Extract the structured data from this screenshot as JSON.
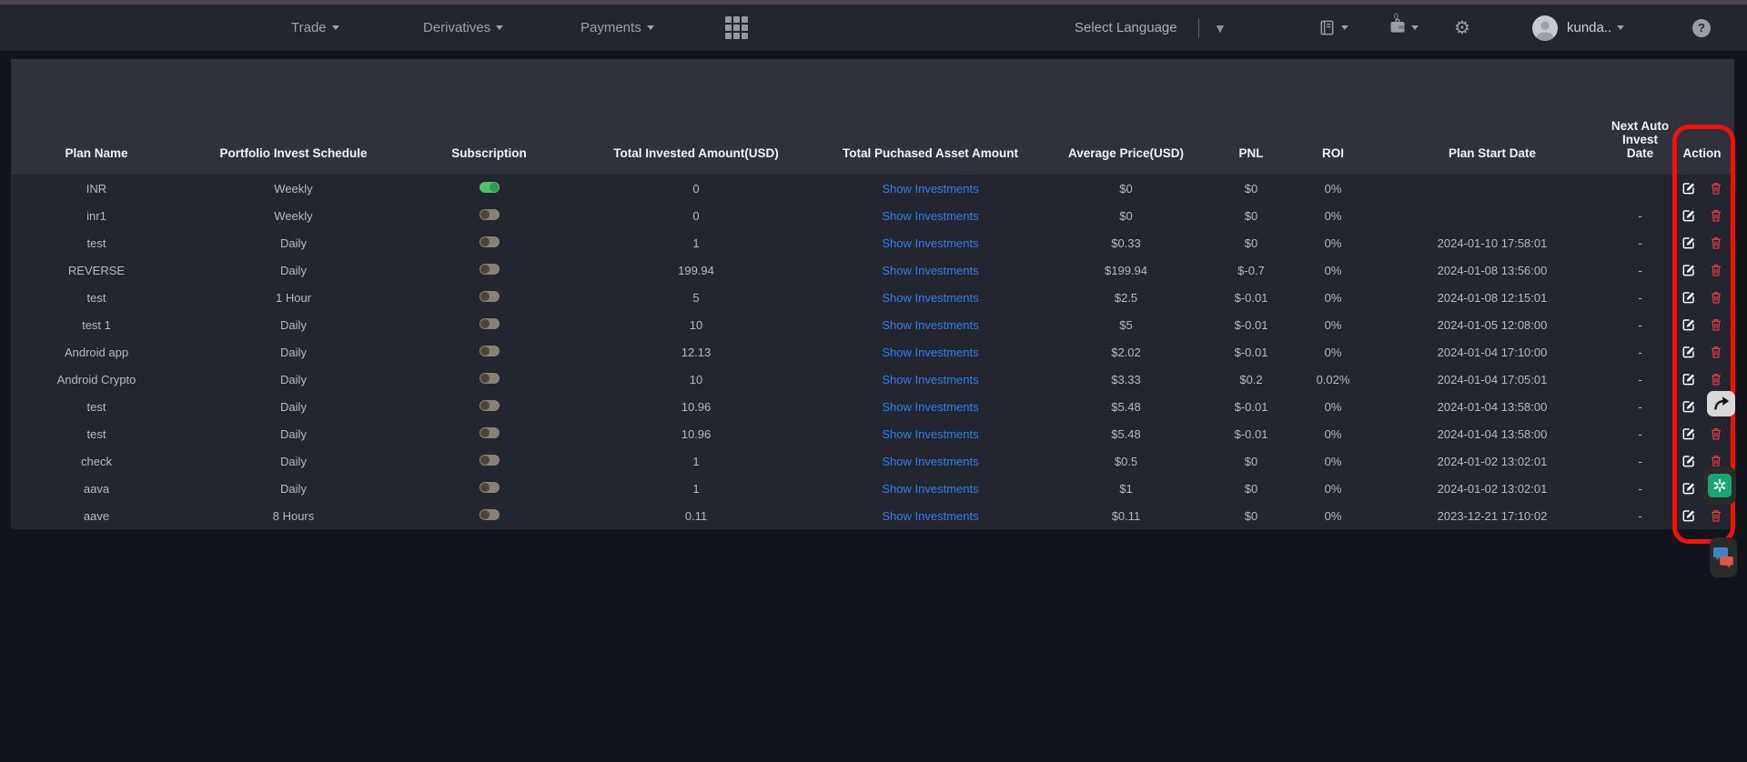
{
  "navbar": {
    "menus": [
      {
        "label": "Trade"
      },
      {
        "label": "Derivatives"
      },
      {
        "label": "Payments"
      }
    ],
    "language": {
      "label": "Select Language"
    },
    "wallet_badge": "0",
    "user": {
      "name": "kunda.."
    },
    "icons": [
      "apps-grid-icon",
      "orders-book-icon",
      "wallet-icon",
      "gear-icon",
      "avatar",
      "help-icon"
    ]
  },
  "table": {
    "columns": [
      {
        "label": "Plan Name"
      },
      {
        "label": "Portfolio Invest Schedule"
      },
      {
        "label": "Subscription"
      },
      {
        "label": "Total Invested Amount(USD)"
      },
      {
        "label": "Total Puchased Asset Amount"
      },
      {
        "label": "Average Price(USD)"
      },
      {
        "label": "PNL"
      },
      {
        "label": "ROI"
      },
      {
        "label": "Plan Start Date"
      },
      {
        "label": "Next Auto Invest Date"
      },
      {
        "label": "Action"
      }
    ],
    "link_label": "Show Investments",
    "action_icons": [
      "edit-icon",
      "trash-icon"
    ],
    "rows": [
      {
        "plan_name": "INR",
        "schedule": "Weekly",
        "subscription_on": true,
        "invested": "0",
        "avg_price": "$0",
        "pnl": "$0",
        "roi": "0%",
        "start_date": "",
        "next_date": ""
      },
      {
        "plan_name": "inr1",
        "schedule": "Weekly",
        "subscription_on": false,
        "invested": "0",
        "avg_price": "$0",
        "pnl": "$0",
        "roi": "0%",
        "start_date": "",
        "next_date": "-"
      },
      {
        "plan_name": "test",
        "schedule": "Daily",
        "subscription_on": false,
        "invested": "1",
        "avg_price": "$0.33",
        "pnl": "$0",
        "roi": "0%",
        "start_date": "2024-01-10 17:58:01",
        "next_date": "-"
      },
      {
        "plan_name": "REVERSE",
        "schedule": "Daily",
        "subscription_on": false,
        "invested": "199.94",
        "avg_price": "$199.94",
        "pnl": "$-0.7",
        "roi": "0%",
        "start_date": "2024-01-08 13:56:00",
        "next_date": "-"
      },
      {
        "plan_name": "test",
        "schedule": "1 Hour",
        "subscription_on": false,
        "invested": "5",
        "avg_price": "$2.5",
        "pnl": "$-0.01",
        "roi": "0%",
        "start_date": "2024-01-08 12:15:01",
        "next_date": "-"
      },
      {
        "plan_name": "test 1",
        "schedule": "Daily",
        "subscription_on": false,
        "invested": "10",
        "avg_price": "$5",
        "pnl": "$-0.01",
        "roi": "0%",
        "start_date": "2024-01-05 12:08:00",
        "next_date": "-"
      },
      {
        "plan_name": "Android app",
        "schedule": "Daily",
        "subscription_on": false,
        "invested": "12.13",
        "avg_price": "$2.02",
        "pnl": "$-0.01",
        "roi": "0%",
        "start_date": "2024-01-04 17:10:00",
        "next_date": "-"
      },
      {
        "plan_name": "Android Crypto",
        "schedule": "Daily",
        "subscription_on": false,
        "invested": "10",
        "avg_price": "$3.33",
        "pnl": "$0.2",
        "roi": "0.02%",
        "start_date": "2024-01-04 17:05:01",
        "next_date": "-"
      },
      {
        "plan_name": "test",
        "schedule": "Daily",
        "subscription_on": false,
        "invested": "10.96",
        "avg_price": "$5.48",
        "pnl": "$-0.01",
        "roi": "0%",
        "start_date": "2024-01-04 13:58:00",
        "next_date": "-"
      },
      {
        "plan_name": "test",
        "schedule": "Daily",
        "subscription_on": false,
        "invested": "10.96",
        "avg_price": "$5.48",
        "pnl": "$-0.01",
        "roi": "0%",
        "start_date": "2024-01-04 13:58:00",
        "next_date": "-"
      },
      {
        "plan_name": "check",
        "schedule": "Daily",
        "subscription_on": false,
        "invested": "1",
        "avg_price": "$0.5",
        "pnl": "$0",
        "roi": "0%",
        "start_date": "2024-01-02 13:02:01",
        "next_date": "-"
      },
      {
        "plan_name": "aava",
        "schedule": "Daily",
        "subscription_on": false,
        "invested": "1",
        "avg_price": "$1",
        "pnl": "$0",
        "roi": "0%",
        "start_date": "2024-01-02 13:02:01",
        "next_date": "-"
      },
      {
        "plan_name": "aave",
        "schedule": "8 Hours",
        "subscription_on": false,
        "invested": "0.11",
        "avg_price": "$0.11",
        "pnl": "$0",
        "roi": "0%",
        "start_date": "2023-12-21 17:10:02",
        "next_date": "-"
      }
    ]
  },
  "annotation": {
    "target": "action-column",
    "color": "#f2100c"
  },
  "floating_buttons": [
    "share-overlay-button",
    "openai-overlay-button",
    "chat-overlay-button"
  ],
  "colors": {
    "link_blue": "#2e7ff5",
    "toggle_on_green": "#53c267",
    "trash_red": "#e23b41",
    "annotation_red": "#f2100c"
  }
}
